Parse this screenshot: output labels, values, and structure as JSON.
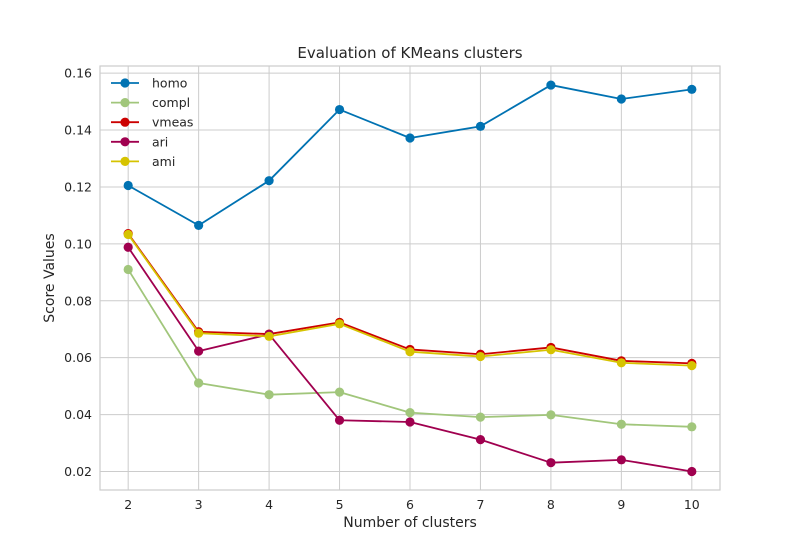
{
  "chart_data": {
    "type": "line",
    "title": "Evaluation of KMeans clusters",
    "xlabel": "Number of clusters",
    "ylabel": "Score Values",
    "x": [
      2,
      3,
      4,
      5,
      6,
      7,
      8,
      9,
      10
    ],
    "xlim": [
      1.6,
      10.4
    ],
    "ylim": [
      0.0135,
      0.1625
    ],
    "yticks": [
      0.02,
      0.04,
      0.06,
      0.08,
      0.1,
      0.12,
      0.14,
      0.16
    ],
    "ytick_labels": [
      "0.02",
      "0.04",
      "0.06",
      "0.08",
      "0.10",
      "0.12",
      "0.14",
      "0.16"
    ],
    "xtick_labels": [
      "2",
      "3",
      "4",
      "5",
      "6",
      "7",
      "8",
      "9",
      "10"
    ],
    "grid": true,
    "legend_position": "top-left",
    "series": [
      {
        "name": "homo",
        "color": "#0072b2",
        "values": [
          0.1205,
          0.1065,
          0.1222,
          0.1472,
          0.1372,
          0.1413,
          0.1558,
          0.1509,
          0.1543
        ]
      },
      {
        "name": "compl",
        "color": "#a1c67b",
        "values": [
          0.091,
          0.0511,
          0.047,
          0.0479,
          0.0407,
          0.0391,
          0.0399,
          0.0366,
          0.0357
        ]
      },
      {
        "name": "vmeas",
        "color": "#cc0000",
        "values": [
          0.1036,
          0.0691,
          0.0683,
          0.0724,
          0.0629,
          0.0612,
          0.0636,
          0.0589,
          0.058
        ]
      },
      {
        "name": "ari",
        "color": "#a0004f",
        "values": [
          0.0988,
          0.0623,
          0.0682,
          0.038,
          0.0374,
          0.0312,
          0.0231,
          0.0241,
          0.02
        ]
      },
      {
        "name": "ami",
        "color": "#d6c300",
        "values": [
          0.1033,
          0.0686,
          0.0675,
          0.0719,
          0.0621,
          0.0604,
          0.0628,
          0.0582,
          0.0572
        ]
      }
    ]
  }
}
